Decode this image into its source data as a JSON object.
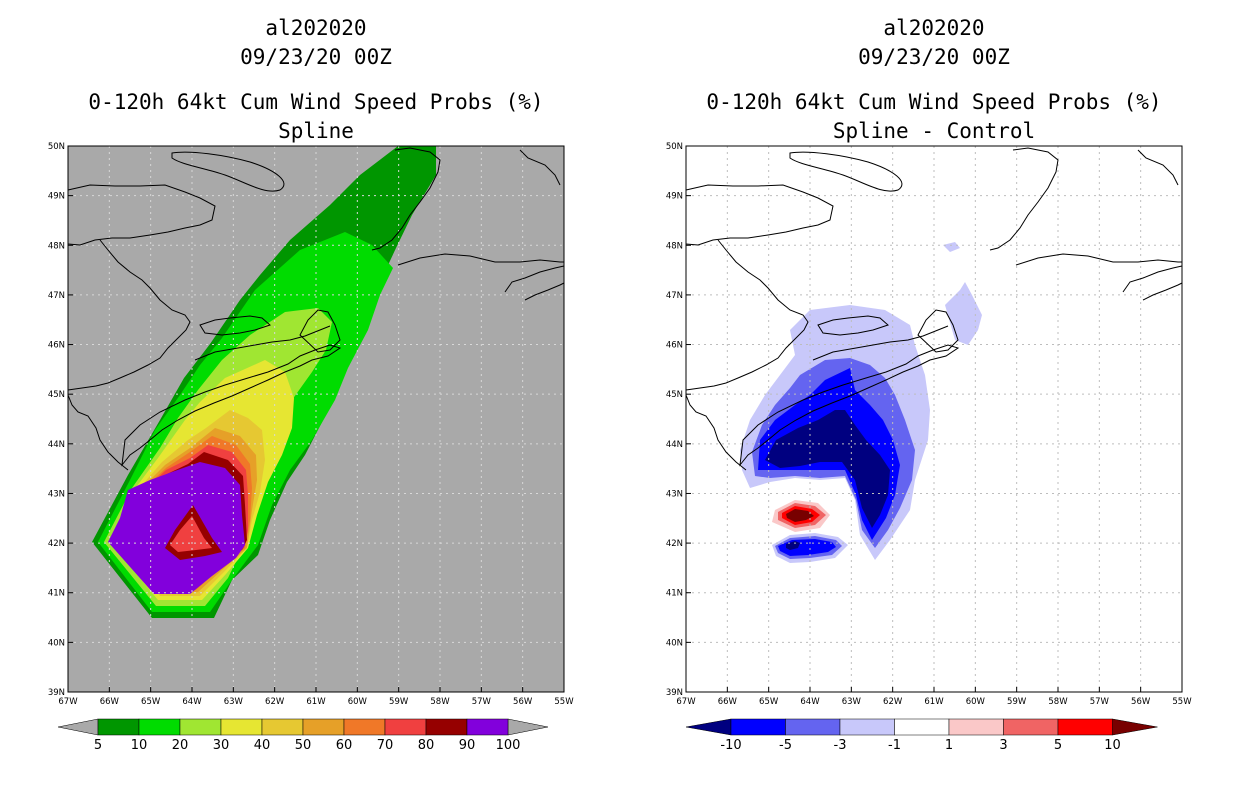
{
  "panels": [
    {
      "id": "left",
      "title_lines": [
        "al202020",
        "09/23/20 00Z",
        "0-120h 64kt Cum Wind Speed Probs (%)",
        "Spline"
      ],
      "background": "#a9a9a9"
    },
    {
      "id": "right",
      "title_lines": [
        "al202020",
        "09/23/20 00Z",
        "0-120h 64kt Cum Wind Speed Probs (%)",
        "Spline - Control"
      ],
      "background": "#ffffff"
    }
  ],
  "chart_data": [
    {
      "type": "heatmap",
      "subtitle": "Spline",
      "x_ticks": [
        "67W",
        "66W",
        "65W",
        "64W",
        "63W",
        "62W",
        "61W",
        "60W",
        "59W",
        "58W",
        "57W",
        "56W",
        "55W"
      ],
      "y_ticks": [
        "39N",
        "40N",
        "41N",
        "42N",
        "43N",
        "44N",
        "45N",
        "46N",
        "47N",
        "48N",
        "49N",
        "50N"
      ],
      "xlim": [
        -67,
        -55
      ],
      "ylim": [
        39,
        50
      ],
      "colorbar": {
        "levels": [
          "5",
          "10",
          "20",
          "30",
          "40",
          "50",
          "60",
          "70",
          "80",
          "90",
          "100"
        ],
        "colors": [
          "#009600",
          "#00dc00",
          "#a0e632",
          "#e6e632",
          "#e6c832",
          "#e6a028",
          "#f07828",
          "#f04040",
          "#960000",
          "#8200dc"
        ],
        "triangles": [
          "#a9a9a9",
          "#a9a9a9"
        ]
      }
    },
    {
      "type": "heatmap",
      "subtitle": "Spline - Control",
      "x_ticks": [
        "67W",
        "66W",
        "65W",
        "64W",
        "63W",
        "62W",
        "61W",
        "60W",
        "59W",
        "58W",
        "57W",
        "56W",
        "55W"
      ],
      "y_ticks": [
        "39N",
        "40N",
        "41N",
        "42N",
        "43N",
        "44N",
        "45N",
        "46N",
        "47N",
        "48N",
        "49N",
        "50N"
      ],
      "xlim": [
        -67,
        -55
      ],
      "ylim": [
        39,
        50
      ],
      "colorbar": {
        "levels": [
          "-10",
          "-5",
          "-3",
          "-1",
          "1",
          "3",
          "5",
          "10"
        ],
        "colors": [
          "#0000ff",
          "#6464f0",
          "#c8c8fa",
          "#ffffff",
          "#fac8c8",
          "#f06464",
          "#ff0000"
        ],
        "triangles": [
          "#000080",
          "#780000"
        ]
      }
    }
  ]
}
